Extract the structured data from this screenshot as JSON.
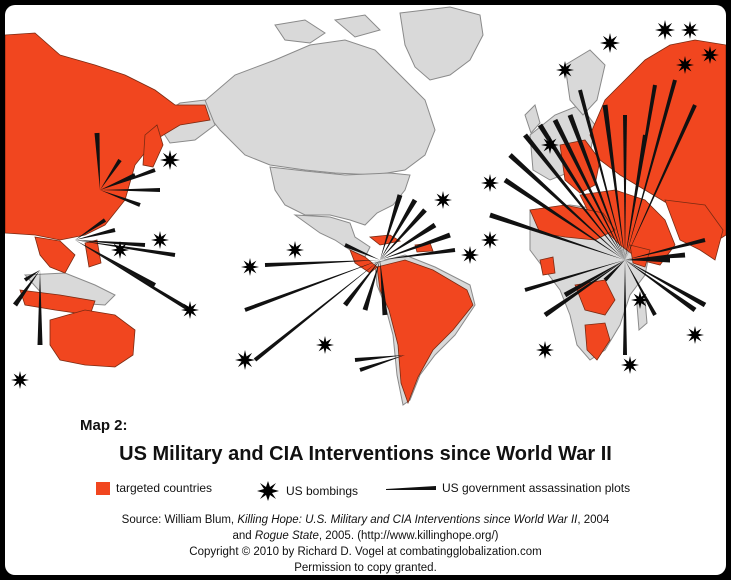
{
  "caption": {
    "map_number": "Map 2:",
    "title": "US Military and CIA Interventions since World War II",
    "legend": {
      "targeted": "targeted countries",
      "bombings": "US bombings",
      "plots": "US government assassination plots"
    },
    "source_prefix": "Source:  William Blum, ",
    "source_book1": "Killing Hope: U.S. Military and CIA Interventions since World War II",
    "source_year1": ", 2004",
    "source_and": "and ",
    "source_book2": "Rogue State",
    "source_year2": ", 2005. (http://www.killinghope.org/)",
    "copyright": "Copyright  ©  2010 by Richard D. Vogel at combatingglobalization.com",
    "permission": "Permission to copy granted."
  },
  "colors": {
    "targeted": "#f1461f",
    "land": "#d9d9d9",
    "background": "#ffffff",
    "frame": "#000000"
  },
  "icons": {
    "bombing": "explosion-burst-icon",
    "plot": "wedge-line-icon"
  }
}
